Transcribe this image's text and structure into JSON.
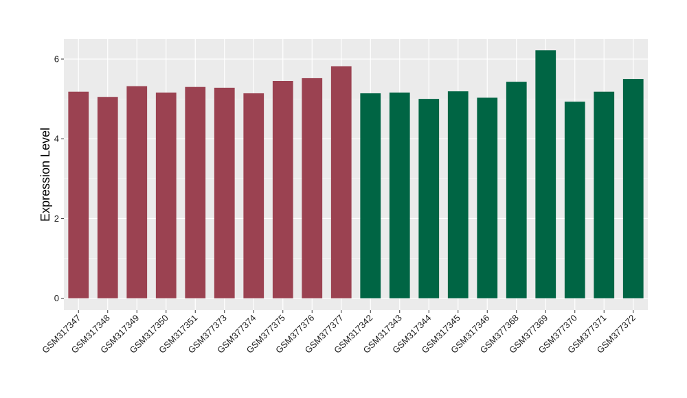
{
  "chart_data": {
    "type": "bar",
    "title": "",
    "xlabel": "",
    "ylabel": "Expression Level",
    "ylim": [
      -0.3,
      6.5
    ],
    "y_ticks": [
      0,
      2,
      4,
      6
    ],
    "grid": true,
    "legend": "none",
    "panel_background": "#ebebeb",
    "gridline_color": "#ffffff",
    "categories": [
      "GSM317347",
      "GSM317348",
      "GSM317349",
      "GSM317350",
      "GSM317351",
      "GSM377373",
      "GSM377374",
      "GSM377375",
      "GSM377376",
      "GSM377377",
      "GSM317342",
      "GSM317343",
      "GSM317344",
      "GSM317345",
      "GSM317346",
      "GSM377368",
      "GSM377369",
      "GSM377370",
      "GSM377371",
      "GSM377372"
    ],
    "values": [
      5.18,
      5.05,
      5.32,
      5.16,
      5.3,
      5.28,
      5.14,
      5.45,
      5.52,
      5.82,
      5.14,
      5.16,
      5.0,
      5.19,
      5.03,
      5.43,
      6.22,
      4.93,
      5.18,
      5.5
    ],
    "bar_colors": [
      "#9b4251",
      "#9b4251",
      "#9b4251",
      "#9b4251",
      "#9b4251",
      "#9b4251",
      "#9b4251",
      "#9b4251",
      "#9b4251",
      "#9b4251",
      "#006544",
      "#006544",
      "#006544",
      "#006544",
      "#006544",
      "#006544",
      "#006544",
      "#006544",
      "#006544",
      "#006544"
    ]
  }
}
